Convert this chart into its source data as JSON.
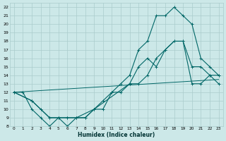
{
  "xlabel": "Humidex (Indice chaleur)",
  "ylabel": "",
  "bg_color": "#cce8e8",
  "grid_color": "#aacccc",
  "line_color": "#006666",
  "xlim": [
    -0.5,
    23.5
  ],
  "ylim": [
    8,
    22.5
  ],
  "xticks": [
    0,
    1,
    2,
    3,
    4,
    5,
    6,
    7,
    8,
    9,
    10,
    11,
    12,
    13,
    14,
    15,
    16,
    17,
    18,
    19,
    20,
    21,
    22,
    23
  ],
  "yticks": [
    8,
    9,
    10,
    11,
    12,
    13,
    14,
    15,
    16,
    17,
    18,
    19,
    20,
    21,
    22
  ],
  "line_top_x": [
    0,
    2,
    3,
    4,
    5,
    6,
    7,
    9,
    10,
    11,
    12,
    13,
    14,
    15,
    16,
    17,
    18,
    19,
    20,
    21,
    22,
    23
  ],
  "line_top_y": [
    12,
    11,
    10,
    9,
    9,
    9,
    9,
    10,
    11,
    12,
    13,
    14,
    17,
    18,
    21,
    21,
    22,
    21,
    20,
    16,
    15,
    14
  ],
  "line_mid_x": [
    0,
    1,
    2,
    3,
    4,
    5,
    6,
    7,
    8,
    9,
    10,
    11,
    12,
    13,
    14,
    15,
    16,
    17,
    18,
    19,
    20,
    21,
    22,
    23
  ],
  "line_mid_y": [
    12,
    12,
    10,
    9,
    8,
    9,
    8,
    9,
    9,
    10,
    10,
    12,
    12,
    13,
    15,
    16,
    15,
    17,
    18,
    18,
    15,
    15,
    14,
    14
  ],
  "line_bot_x": [
    0,
    2,
    4,
    5,
    6,
    7,
    8,
    9,
    13,
    14,
    15,
    16,
    17,
    18,
    19,
    20,
    21,
    22,
    23
  ],
  "line_bot_y": [
    12,
    11,
    9,
    9,
    9,
    9,
    9,
    10,
    13,
    13,
    14,
    16,
    17,
    18,
    18,
    13,
    13,
    14,
    13
  ]
}
